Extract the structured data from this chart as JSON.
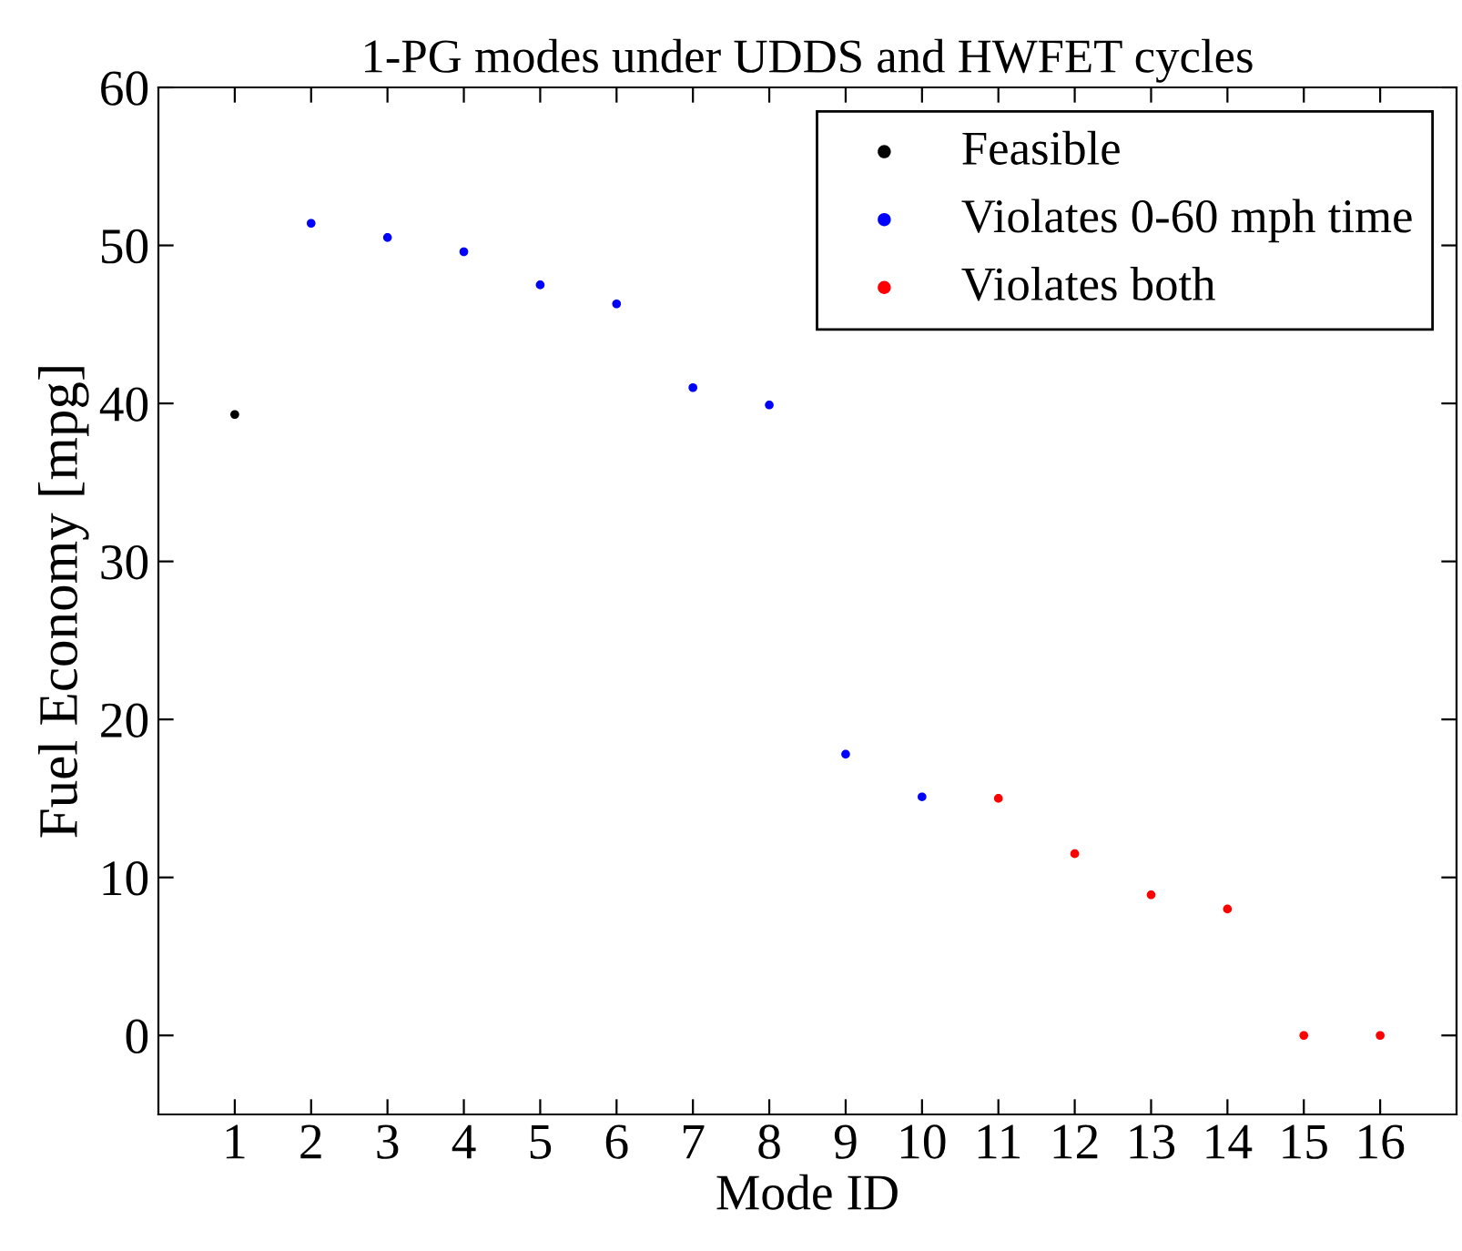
{
  "chart_data": {
    "type": "scatter",
    "title": "1-PG modes under UDDS and HWFET cycles",
    "xlabel": "Mode ID",
    "ylabel": "Fuel Economy [mpg]",
    "series": [
      {
        "name": "Feasible",
        "color": "#000000",
        "x": [
          1
        ],
        "values": [
          39.3
        ]
      },
      {
        "name": "Violates 0-60 mph time",
        "color": "#0000ff",
        "x": [
          2,
          3,
          4,
          5,
          6,
          7,
          8,
          9,
          10
        ],
        "values": [
          51.4,
          50.5,
          49.6,
          47.5,
          46.3,
          41.0,
          39.9,
          17.8,
          15.1
        ]
      },
      {
        "name": "Violates both",
        "color": "#ff0000",
        "x": [
          11,
          12,
          13,
          14,
          15,
          16
        ],
        "values": [
          15.0,
          11.5,
          8.9,
          8.0,
          0,
          0
        ]
      }
    ],
    "xlim": [
      0,
      17
    ],
    "ylim": [
      -5,
      60
    ],
    "xticks": [
      1,
      2,
      3,
      4,
      5,
      6,
      7,
      8,
      9,
      10,
      11,
      12,
      13,
      14,
      15,
      16
    ],
    "yticks": [
      0,
      10,
      20,
      30,
      40,
      50,
      60
    ],
    "marker": "circle",
    "grid": false,
    "legend": "top right"
  }
}
